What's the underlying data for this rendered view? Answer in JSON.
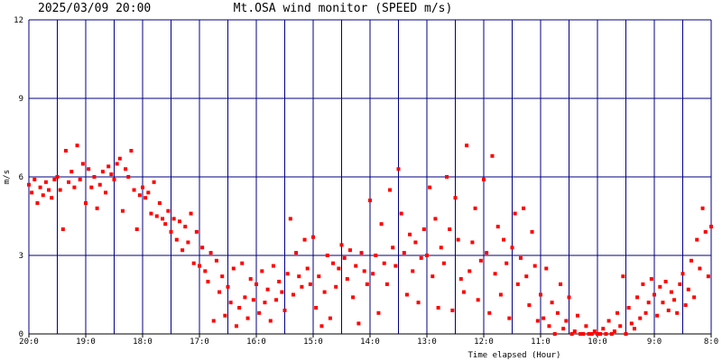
{
  "chart_data": {
    "type": "scatter",
    "timestamp": "2025/03/09 20:00",
    "title": "Mt.OSA wind monitor (SPEED m/s)",
    "ylabel": "m/s",
    "xlabel": "Time elapsed (Hour)",
    "color": "#ff0000",
    "grid_color": "#000080",
    "grid": true,
    "ylim": [
      0,
      12
    ],
    "yticks": [
      0,
      3,
      6,
      9,
      12
    ],
    "xlim": [
      0,
      12
    ],
    "xticks": [
      {
        "value": 0,
        "label": "20:0"
      },
      {
        "value": 1,
        "label": "19:0"
      },
      {
        "value": 2,
        "label": "18:0"
      },
      {
        "value": 3,
        "label": "17:0"
      },
      {
        "value": 4,
        "label": "16:0"
      },
      {
        "value": 5,
        "label": "15:0"
      },
      {
        "value": 6,
        "label": "14:0"
      },
      {
        "value": 7,
        "label": "13:0"
      },
      {
        "value": 8,
        "label": "12:0"
      },
      {
        "value": 9,
        "label": "11:0"
      },
      {
        "value": 10,
        "label": "10:0"
      },
      {
        "value": 11,
        "label": "9:0"
      },
      {
        "value": 12,
        "label": "8:0"
      }
    ],
    "x_gridlines": [
      0.5,
      1.5,
      2.5,
      3.5,
      4.5,
      5.5,
      6.5,
      7.5,
      8.5,
      9.5,
      10.5,
      11.5
    ],
    "x": [
      0,
      0.05,
      0.1,
      0.15,
      0.2,
      0.25,
      0.3,
      0.35,
      0.4,
      0.45,
      0.5,
      0.55,
      0.6,
      0.65,
      0.7,
      0.75,
      0.8,
      0.85,
      0.9,
      0.95,
      1,
      1.05,
      1.1,
      1.15,
      1.2,
      1.25,
      1.3,
      1.35,
      1.4,
      1.45,
      1.5,
      1.55,
      1.6,
      1.65,
      1.7,
      1.75,
      1.8,
      1.85,
      1.9,
      1.95,
      2,
      2.05,
      2.1,
      2.15,
      2.2,
      2.25,
      2.3,
      2.35,
      2.4,
      2.45,
      2.5,
      2.55,
      2.6,
      2.65,
      2.7,
      2.75,
      2.8,
      2.85,
      2.9,
      2.95,
      3,
      3.05,
      3.1,
      3.15,
      3.2,
      3.25,
      3.3,
      3.35,
      3.4,
      3.45,
      3.5,
      3.55,
      3.6,
      3.65,
      3.7,
      3.75,
      3.8,
      3.85,
      3.9,
      3.95,
      4,
      4.05,
      4.1,
      4.15,
      4.2,
      4.25,
      4.3,
      4.35,
      4.4,
      4.45,
      4.5,
      4.55,
      4.6,
      4.65,
      4.7,
      4.75,
      4.8,
      4.85,
      4.9,
      4.95,
      5,
      5.05,
      5.1,
      5.15,
      5.2,
      5.25,
      5.3,
      5.35,
      5.4,
      5.45,
      5.5,
      5.55,
      5.6,
      5.65,
      5.7,
      5.75,
      5.8,
      5.85,
      5.9,
      5.95,
      6,
      6.05,
      6.1,
      6.15,
      6.2,
      6.25,
      6.3,
      6.35,
      6.4,
      6.45,
      6.5,
      6.55,
      6.6,
      6.65,
      6.7,
      6.75,
      6.8,
      6.85,
      6.9,
      6.95,
      7,
      7.05,
      7.1,
      7.15,
      7.2,
      7.25,
      7.3,
      7.35,
      7.4,
      7.45,
      7.5,
      7.55,
      7.6,
      7.65,
      7.7,
      7.75,
      7.8,
      7.85,
      7.9,
      7.95,
      8,
      8.05,
      8.1,
      8.15,
      8.2,
      8.25,
      8.3,
      8.35,
      8.4,
      8.45,
      8.5,
      8.55,
      8.6,
      8.65,
      8.7,
      8.75,
      8.8,
      8.85,
      8.9,
      8.95,
      9,
      9.05,
      9.1,
      9.15,
      9.2,
      9.25,
      9.3,
      9.35,
      9.4,
      9.45,
      9.5,
      9.55,
      9.6,
      9.65,
      9.7,
      9.75,
      9.8,
      9.85,
      9.9,
      9.95,
      10,
      10.05,
      10.1,
      10.15,
      10.2,
      10.25,
      10.3,
      10.35,
      10.4,
      10.45,
      10.5,
      10.55,
      10.6,
      10.65,
      10.7,
      10.75,
      10.8,
      10.85,
      10.9,
      10.95,
      11,
      11.05,
      11.1,
      11.15,
      11.2,
      11.25,
      11.3,
      11.35,
      11.4,
      11.45,
      11.5,
      11.55,
      11.6,
      11.65,
      11.7,
      11.75,
      11.8,
      11.85,
      11.9,
      11.95,
      12
    ],
    "values": [
      5.7,
      5.4,
      5.9,
      5.0,
      5.6,
      5.3,
      5.8,
      5.5,
      5.2,
      5.9,
      6.0,
      5.5,
      4.0,
      7.0,
      5.8,
      6.2,
      5.6,
      7.2,
      5.9,
      6.5,
      5.0,
      6.3,
      5.6,
      6.0,
      4.8,
      5.7,
      6.2,
      5.4,
      6.4,
      6.1,
      5.9,
      6.5,
      6.7,
      4.7,
      6.3,
      6.0,
      7.0,
      5.5,
      4.0,
      5.3,
      5.6,
      5.2,
      5.4,
      4.6,
      5.8,
      4.5,
      5.0,
      4.4,
      4.2,
      4.7,
      3.9,
      4.4,
      3.6,
      4.3,
      3.2,
      4.1,
      3.5,
      4.6,
      2.7,
      3.9,
      2.6,
      3.3,
      2.4,
      2.0,
      3.1,
      0.5,
      2.8,
      1.6,
      2.2,
      0.7,
      1.8,
      1.2,
      2.5,
      0.3,
      1.0,
      2.7,
      1.4,
      0.6,
      2.1,
      1.3,
      1.9,
      0.8,
      2.4,
      1.2,
      1.7,
      0.5,
      2.6,
      1.3,
      2.0,
      1.6,
      0.9,
      2.3,
      4.4,
      1.5,
      3.1,
      2.2,
      1.8,
      3.6,
      2.5,
      1.9,
      3.7,
      1.0,
      2.2,
      0.3,
      1.6,
      3.0,
      0.6,
      2.7,
      1.8,
      2.5,
      3.4,
      2.9,
      2.1,
      3.2,
      1.4,
      2.6,
      0.4,
      3.1,
      2.4,
      1.9,
      5.1,
      2.3,
      3.0,
      0.8,
      4.2,
      2.7,
      1.9,
      5.5,
      3.3,
      2.6,
      6.3,
      4.6,
      3.1,
      1.5,
      3.8,
      2.4,
      3.5,
      1.2,
      2.9,
      4.0,
      3.0,
      5.6,
      2.2,
      4.4,
      1.0,
      3.3,
      2.7,
      6.0,
      4.0,
      0.9,
      5.2,
      3.6,
      2.1,
      1.6,
      7.2,
      2.4,
      3.5,
      4.8,
      1.3,
      2.8,
      5.9,
      3.1,
      0.8,
      6.8,
      2.3,
      4.1,
      1.5,
      3.6,
      2.7,
      0.6,
      3.3,
      4.6,
      1.9,
      2.9,
      4.8,
      2.2,
      1.1,
      3.9,
      2.6,
      0.5,
      1.5,
      0.6,
      2.5,
      0.3,
      1.2,
      0.0,
      0.8,
      1.9,
      0.2,
      0.5,
      1.4,
      0.0,
      0.1,
      0.7,
      0.0,
      0.0,
      0.3,
      0.0,
      0.0,
      0.1,
      0.0,
      0.0,
      0.2,
      0.0,
      0.5,
      0.0,
      0.1,
      0.8,
      0.3,
      2.2,
      0.0,
      1.0,
      0.4,
      0.2,
      1.4,
      0.6,
      1.9,
      0.8,
      1.2,
      2.1,
      1.5,
      0.7,
      1.8,
      1.2,
      2.0,
      0.9,
      1.6,
      1.3,
      0.8,
      1.9,
      2.3,
      1.1,
      1.7,
      2.8,
      1.4,
      3.6,
      2.5,
      4.8,
      3.9,
      2.2,
      4.1
    ]
  }
}
